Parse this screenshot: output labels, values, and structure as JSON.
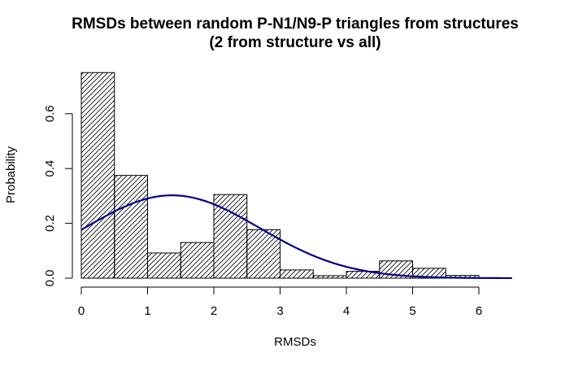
{
  "chart_data": {
    "type": "bar",
    "title_line1": "RMSDs between random P-N1/N9-P triangles from structures",
    "title_line2": "(2 from structure vs all)",
    "xlabel": "RMSDs",
    "ylabel": "Probability",
    "bin_edges": [
      0,
      0.5,
      1,
      1.5,
      2,
      2.5,
      3,
      3.5,
      4,
      4.5,
      5,
      5.5,
      6
    ],
    "values": [
      0.75,
      0.375,
      0.092,
      0.13,
      0.305,
      0.177,
      0.03,
      0.009,
      0.025,
      0.063,
      0.036,
      0.01
    ],
    "xlim": [
      0,
      6.5
    ],
    "ylim": [
      0,
      0.75
    ],
    "x_ticks": [
      0,
      1,
      2,
      3,
      4,
      5,
      6
    ],
    "y_ticks": [
      0.0,
      0.2,
      0.4,
      0.6
    ],
    "x_tick_labels": [
      "0",
      "1",
      "2",
      "3",
      "4",
      "5",
      "6"
    ],
    "y_tick_labels": [
      "0.0",
      "0.2",
      "0.4",
      "0.6"
    ],
    "bar_fill": "hatched diagonal lines",
    "curve": {
      "type": "normal density",
      "mean": 1.37,
      "sd": 1.32,
      "color": "#00008B"
    },
    "grid": false,
    "legend": "none"
  }
}
